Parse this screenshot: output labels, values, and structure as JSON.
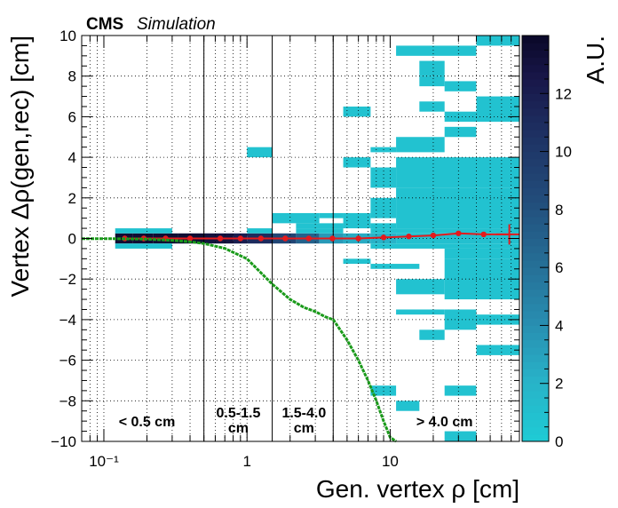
{
  "chart_data": {
    "type": "heatmap",
    "header": {
      "experiment": "CMS",
      "label": "Simulation"
    },
    "xlabel": "Gen. vertex ρ [cm]",
    "ylabel": "Vertex Δρ(gen,rec) [cm]",
    "zlabel": "A.U.",
    "x_scale": "log",
    "xlim": [
      0.07,
      80
    ],
    "ylim": [
      -10,
      10
    ],
    "zlim": [
      0,
      14
    ],
    "x_ticks": [
      {
        "value": 0.1,
        "label": "10⁻¹"
      },
      {
        "value": 1,
        "label": "1"
      },
      {
        "value": 10,
        "label": "10"
      }
    ],
    "y_ticks": [
      -10,
      -8,
      -6,
      -4,
      -2,
      0,
      2,
      4,
      6,
      8,
      10
    ],
    "y_tick_labels": [
      "−10",
      "−8",
      "−6",
      "−4",
      "−2",
      "0",
      "2",
      "4",
      "6",
      "8",
      "10"
    ],
    "z_ticks": [
      0,
      2,
      4,
      6,
      8,
      10,
      12
    ],
    "grid": true,
    "region_boundaries_cm": [
      0.5,
      1.5,
      4.0
    ],
    "regions": [
      {
        "label": "< 0.5 cm",
        "x": 0.2
      },
      {
        "label": "0.5-1.5",
        "label2": "cm",
        "x": 0.87
      },
      {
        "label": "1.5-4.0",
        "label2": "cm",
        "x": 2.5
      },
      {
        "label": "> 4.0 cm",
        "x": 24
      }
    ],
    "cells": [
      {
        "x": [
          0.12,
          0.16
        ],
        "y": [
          -0.25,
          0.25
        ],
        "z": 13.5
      },
      {
        "x": [
          0.16,
          0.22
        ],
        "y": [
          -0.25,
          0.25
        ],
        "z": 13.5
      },
      {
        "x": [
          0.22,
          0.33
        ],
        "y": [
          -0.25,
          0.25
        ],
        "z": 13.5
      },
      {
        "x": [
          0.33,
          0.5
        ],
        "y": [
          -0.25,
          0.25
        ],
        "z": 13.5
      },
      {
        "x": [
          0.5,
          0.8
        ],
        "y": [
          -0.25,
          0.25
        ],
        "z": 13.0
      },
      {
        "x": [
          0.8,
          1.0
        ],
        "y": [
          -0.25,
          0.25
        ],
        "z": 12.0
      },
      {
        "x": [
          1.0,
          1.5
        ],
        "y": [
          -0.25,
          0.25
        ],
        "z": 11.0
      },
      {
        "x": [
          1.5,
          2.2
        ],
        "y": [
          -0.25,
          0.25
        ],
        "z": 9.0
      },
      {
        "x": [
          2.2,
          3.2
        ],
        "y": [
          -0.25,
          0.25
        ],
        "z": 7.0
      },
      {
        "x": [
          3.2,
          4.7
        ],
        "y": [
          -0.25,
          0.25
        ],
        "z": 3.5
      },
      {
        "x": [
          4.7,
          7.3
        ],
        "y": [
          -0.25,
          0.25
        ],
        "z": 2.5
      },
      {
        "x": [
          7.3,
          11
        ],
        "y": [
          -0.25,
          0.25
        ],
        "z": 2.0
      },
      {
        "x": [
          11,
          80
        ],
        "y": [
          -0.25,
          0.25
        ],
        "z": 1.0
      },
      {
        "x": [
          0.12,
          0.3
        ],
        "y": [
          0.25,
          0.5
        ],
        "z": 0.8
      },
      {
        "x": [
          0.12,
          0.3
        ],
        "y": [
          -0.5,
          -0.25
        ],
        "z": 0.8
      },
      {
        "x": [
          1.0,
          1.5
        ],
        "y": [
          0.25,
          0.5
        ],
        "z": 0.8
      },
      {
        "x": [
          2.2,
          4.7
        ],
        "y": [
          0.25,
          0.5
        ],
        "z": 0.8
      },
      {
        "x": [
          7.3,
          80
        ],
        "y": [
          0.25,
          0.5
        ],
        "z": 0.8
      },
      {
        "x": [
          7.3,
          80
        ],
        "y": [
          -0.5,
          -0.25
        ],
        "z": 0.8
      },
      {
        "x": [
          1.0,
          1.5
        ],
        "y": [
          4.0,
          4.5
        ],
        "z": 0.8
      },
      {
        "x": [
          2.2,
          4.7
        ],
        "y": [
          0.5,
          0.75
        ],
        "z": 0.8
      },
      {
        "x": [
          1.5,
          3.2
        ],
        "y": [
          0.75,
          1.25
        ],
        "z": 0.8
      },
      {
        "x": [
          3.2,
          4.7
        ],
        "y": [
          1.0,
          1.25
        ],
        "z": 0.8
      },
      {
        "x": [
          4.7,
          7.3
        ],
        "y": [
          0.5,
          1.25
        ],
        "z": 0.8
      },
      {
        "x": [
          7.3,
          11
        ],
        "y": [
          1.0,
          2.0
        ],
        "z": 0.8
      },
      {
        "x": [
          7.3,
          11
        ],
        "y": [
          0.5,
          0.75
        ],
        "z": 0.8
      },
      {
        "x": [
          11,
          80
        ],
        "y": [
          0.5,
          2.5
        ],
        "z": 0.8
      },
      {
        "x": [
          11,
          80
        ],
        "y": [
          2.5,
          4.0
        ],
        "z": 0.8
      },
      {
        "x": [
          7.3,
          11
        ],
        "y": [
          2.5,
          3.5
        ],
        "z": 0.8
      },
      {
        "x": [
          4.7,
          7.3
        ],
        "y": [
          3.5,
          4.0
        ],
        "z": 0.8
      },
      {
        "x": [
          7.3,
          11
        ],
        "y": [
          4.25,
          4.5
        ],
        "z": 0.8
      },
      {
        "x": [
          11,
          24
        ],
        "y": [
          4.25,
          5.0
        ],
        "z": 0.8
      },
      {
        "x": [
          24,
          40
        ],
        "y": [
          5.0,
          5.5
        ],
        "z": 0.8
      },
      {
        "x": [
          4.7,
          7.3
        ],
        "y": [
          6.0,
          6.5
        ],
        "z": 0.8
      },
      {
        "x": [
          16,
          24
        ],
        "y": [
          6.25,
          6.75
        ],
        "z": 0.8
      },
      {
        "x": [
          24,
          40
        ],
        "y": [
          5.75,
          6.25
        ],
        "z": 0.8
      },
      {
        "x": [
          40,
          80
        ],
        "y": [
          5.75,
          7.0
        ],
        "z": 0.8
      },
      {
        "x": [
          24,
          40
        ],
        "y": [
          7.25,
          7.75
        ],
        "z": 0.8
      },
      {
        "x": [
          16,
          24
        ],
        "y": [
          7.5,
          8.0
        ],
        "z": 0.8
      },
      {
        "x": [
          16,
          24
        ],
        "y": [
          8.0,
          8.75
        ],
        "z": 0.8
      },
      {
        "x": [
          11,
          40
        ],
        "y": [
          9.0,
          9.5
        ],
        "z": 0.8
      },
      {
        "x": [
          40,
          80
        ],
        "y": [
          9.5,
          10.0
        ],
        "z": 0.8
      },
      {
        "x": [
          4.7,
          7.3
        ],
        "y": [
          -1.25,
          -1.0
        ],
        "z": 0.8
      },
      {
        "x": [
          7.3,
          16
        ],
        "y": [
          -1.5,
          -1.25
        ],
        "z": 0.8
      },
      {
        "x": [
          24,
          80
        ],
        "y": [
          -1.0,
          -0.5
        ],
        "z": 0.8
      },
      {
        "x": [
          24,
          80
        ],
        "y": [
          -3.0,
          -1.0
        ],
        "z": 0.8
      },
      {
        "x": [
          11,
          24
        ],
        "y": [
          -2.75,
          -2.0
        ],
        "z": 0.8
      },
      {
        "x": [
          11,
          24
        ],
        "y": [
          -3.75,
          -3.5
        ],
        "z": 0.8
      },
      {
        "x": [
          24,
          40
        ],
        "y": [
          -4.5,
          -3.5
        ],
        "z": 0.8
      },
      {
        "x": [
          40,
          80
        ],
        "y": [
          -4.25,
          -3.75
        ],
        "z": 0.8
      },
      {
        "x": [
          16,
          24
        ],
        "y": [
          -5.0,
          -4.5
        ],
        "z": 0.8
      },
      {
        "x": [
          40,
          80
        ],
        "y": [
          -5.75,
          -5.25
        ],
        "z": 0.8
      },
      {
        "x": [
          24,
          40
        ],
        "y": [
          -7.75,
          -7.25
        ],
        "z": 0.8
      },
      {
        "x": [
          7.3,
          11
        ],
        "y": [
          -7.75,
          -7.25
        ],
        "z": 0.8
      },
      {
        "x": [
          11,
          16
        ],
        "y": [
          -8.5,
          -8.0
        ],
        "z": 0.8
      },
      {
        "x": [
          24,
          40
        ],
        "y": [
          -10.0,
          -9.5
        ],
        "z": 0.8
      }
    ],
    "series": [
      {
        "type": "profile",
        "color": "#e41a1c",
        "x": [
          0.14,
          0.19,
          0.27,
          0.4,
          0.65,
          0.9,
          1.25,
          1.85,
          2.7,
          3.95,
          6.0,
          9.0,
          13.5,
          20,
          30,
          45,
          68
        ],
        "y": [
          0.0,
          0.0,
          0.0,
          0.0,
          0.0,
          0.0,
          0.0,
          0.0,
          0.0,
          0.0,
          0.0,
          0.05,
          0.1,
          0.15,
          0.25,
          0.2,
          0.2
        ],
        "xerr": [
          null,
          null,
          null,
          null,
          null,
          null,
          null,
          null,
          null,
          null,
          null,
          null,
          null,
          null,
          null,
          null,
          [
            55,
            80
          ]
        ],
        "yerr": [
          0,
          0,
          0,
          0,
          0,
          0,
          0,
          0,
          0,
          0,
          0,
          0,
          0,
          0,
          0,
          0,
          0.5
        ]
      },
      {
        "type": "curve",
        "color": "#1a9a1a",
        "x": [
          0.07,
          0.1,
          0.15,
          0.2,
          0.3,
          0.4,
          0.5,
          0.7,
          1.0,
          1.5,
          2.0,
          2.5,
          3.0,
          3.5,
          4.0,
          5.0,
          6.0,
          7.0,
          8.0,
          9.0,
          10.0,
          10.5,
          11.0
        ],
        "y": [
          -0.007,
          -0.01,
          -0.02,
          -0.035,
          -0.09,
          -0.16,
          -0.25,
          -0.49,
          -1.0,
          -2.25,
          -3.0,
          -3.4,
          -3.6,
          -3.85,
          -4.0,
          -5.0,
          -6.0,
          -7.0,
          -8.0,
          -9.0,
          -9.8,
          -9.9,
          -10.0
        ]
      }
    ]
  }
}
